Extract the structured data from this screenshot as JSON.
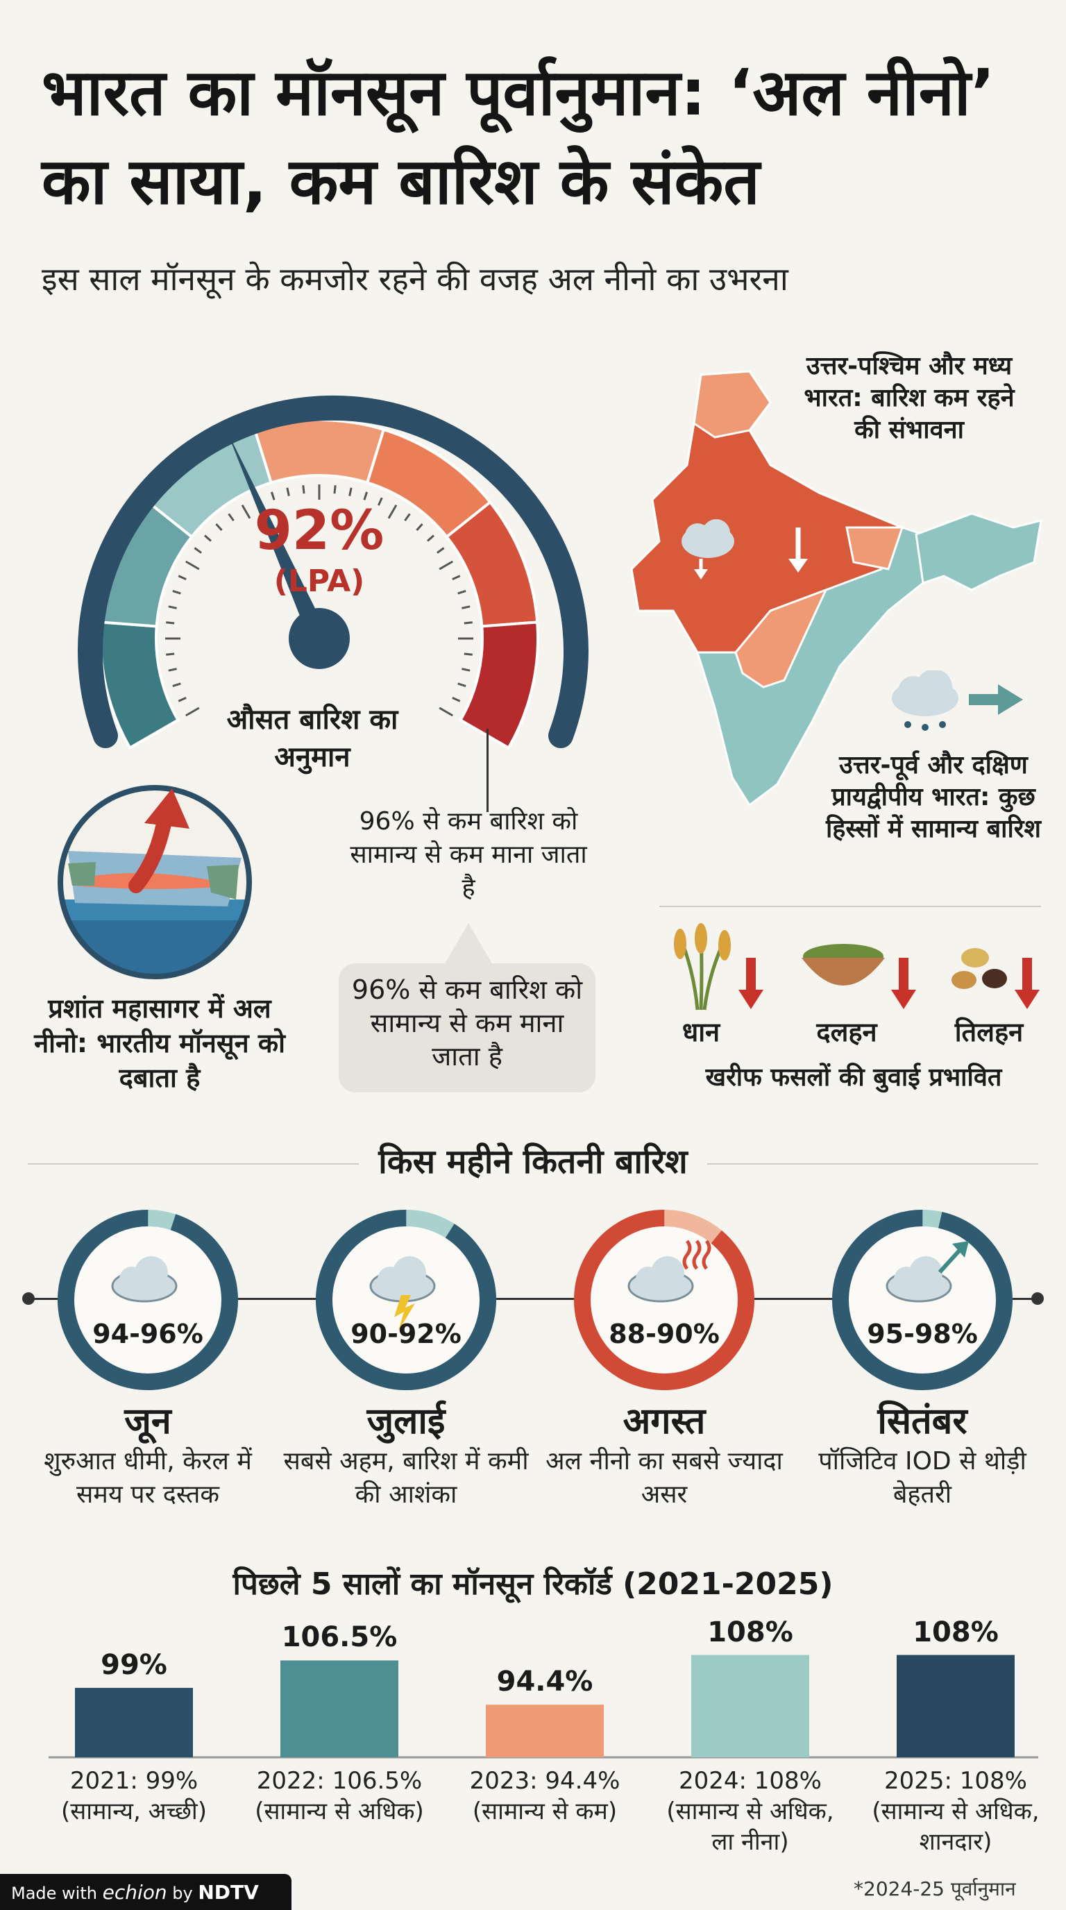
{
  "header": {
    "title": "भारत का मॉनसून पूर्वानुमान: ‘अल नीनो’ का साया, कम बारिश के संकेत",
    "subtitle": "इस साल मॉनसून के कमजोर रहने की वजह अल नीनो का उभरना"
  },
  "gauge": {
    "value_pct": 92,
    "value_text": "92%",
    "unit_text": "(LPA)",
    "label": "औसत बारिश का अनुमान",
    "note": "96% से कम बारिश को सामान्य से कम माना जाता है",
    "callout": "96% से कम बारिश को सामान्य से कम माना जाता है",
    "colors": [
      "#3d7b82",
      "#6ba4a6",
      "#9bc8c6",
      "#ee9a74",
      "#ea7e57",
      "#d4533a",
      "#b52a2d"
    ]
  },
  "elnino": {
    "caption": "प्रशांत महासागर में अल नीनो: भारतीय मॉनसून को दबाता है"
  },
  "map": {
    "nw_label": "उत्तर-पश्चिम और मध्य भारत: बारिश कम रहने की संभावना",
    "ne_label": "उत्तर-पूर्व और दक्षिण प्रायद्वीपीय भारत: कुछ हिस्सों में सामान्य बारिश",
    "colors": {
      "deficit": "#d85a3a",
      "deficit_light": "#ee9a74",
      "normal": "#8fc4c0"
    }
  },
  "crops": {
    "items": [
      {
        "name": "धान",
        "icon": "rice-plant-icon"
      },
      {
        "name": "दलहन",
        "icon": "pulses-bowl-icon"
      },
      {
        "name": "तिलहन",
        "icon": "oilseeds-icon"
      }
    ],
    "caption": "खरीफ फसलों की बुवाई प्रभावित"
  },
  "months_section": {
    "title": "किस महीने कितनी बारिश",
    "months": [
      {
        "name": "जून",
        "range": "94-96%",
        "level": 0.95,
        "desc": "शुरुआत धीमी, केरल में समय पर दस्तक",
        "color": "#2f5a70",
        "icon": "cloud-icon"
      },
      {
        "name": "जुलाई",
        "range": "90-92%",
        "level": 0.91,
        "desc": "सबसे अहम, बारिश में कमी की आशंका",
        "color": "#2f5a70",
        "icon": "storm-cloud-icon"
      },
      {
        "name": "अगस्त",
        "range": "88-90%",
        "level": 0.89,
        "desc": "अल नीनो का सबसे ज्यादा असर",
        "color": "#d14a36",
        "icon": "hot-cloud-icon"
      },
      {
        "name": "सितंबर",
        "range": "95-98%",
        "level": 0.965,
        "desc": "पॉजिटिव IOD से थोड़ी बेहतरी",
        "color": "#2f5a70",
        "icon": "rising-cloud-icon"
      }
    ]
  },
  "chart_data": {
    "type": "bar",
    "title": "पिछले 5 सालों का मॉनसून रिकॉर्ड (2021-2025)",
    "categories": [
      "2021",
      "2022",
      "2023",
      "2024",
      "2025"
    ],
    "values": [
      99,
      106.5,
      94.4,
      108,
      108
    ],
    "value_labels": [
      "99%",
      "106.5%",
      "94.4%",
      "108%",
      "108%"
    ],
    "descriptions": [
      "2021: 99% (सामान्य, अच्छी)",
      "2022: 106.5% (सामान्य से अधिक)",
      "2023: 94.4% (सामान्य से कम)",
      "2024: 108% (सामान्य से अधिक, ला नीना)",
      "2025: 108% (सामान्य से अधिक, शानदार)"
    ],
    "colors": [
      "#2a4f66",
      "#4e8f94",
      "#ee9a74",
      "#9ccbc6",
      "#27485e"
    ],
    "ylim": [
      80,
      110
    ],
    "grid": false,
    "footnote": "*2024-25 पूर्वानुमान"
  },
  "footer": {
    "made_with": "Made with",
    "brand": "echion",
    "by": "by",
    "network": "NDTV"
  }
}
